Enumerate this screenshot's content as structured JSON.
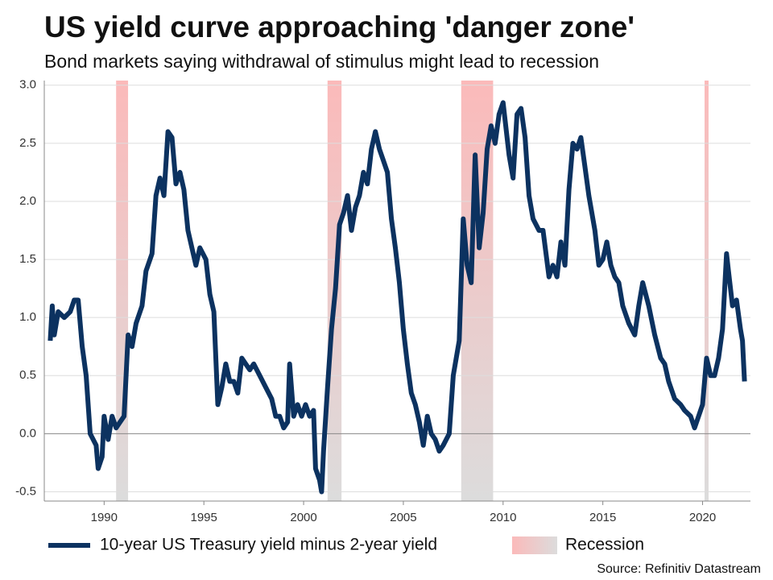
{
  "chart_data": {
    "type": "line",
    "title": "US yield curve approaching 'danger zone'",
    "subtitle": "Bond markets saying withdrawal of stimulus might lead to recession",
    "source": "Source: Refinitiv Datastream",
    "xlim": [
      1987,
      2022.4
    ],
    "xticks": [
      1990,
      1995,
      2000,
      2005,
      2010,
      2015,
      2020
    ],
    "ylim": [
      -0.58,
      3.04
    ],
    "yticks": [
      -0.5,
      {
        "value": 0,
        "label": "0.0"
      },
      0.5,
      {
        "value": 1,
        "label": "1.0"
      },
      1.5,
      {
        "value": 2,
        "label": "2.0"
      },
      2.5,
      {
        "value": 3,
        "label": "3.0"
      }
    ],
    "grid": true,
    "x": [
      1987.3,
      1987.4,
      1987.5,
      1987.7,
      1988.0,
      1988.3,
      1988.5,
      1988.7,
      1988.9,
      1989.1,
      1989.3,
      1989.6,
      1989.7,
      1989.9,
      1990.0,
      1990.2,
      1990.4,
      1990.6,
      1990.8,
      1991.0,
      1991.2,
      1991.4,
      1991.6,
      1991.9,
      1992.1,
      1992.4,
      1992.6,
      1992.8,
      1993.0,
      1993.2,
      1993.4,
      1993.6,
      1993.8,
      1994.0,
      1994.2,
      1994.4,
      1994.6,
      1994.8,
      1995.1,
      1995.3,
      1995.5,
      1995.7,
      1995.9,
      1996.1,
      1996.3,
      1996.5,
      1996.7,
      1996.9,
      1997.1,
      1997.3,
      1997.5,
      1997.8,
      1998.1,
      1998.4,
      1998.6,
      1998.8,
      1999.0,
      1999.2,
      1999.3,
      1999.5,
      1999.7,
      1999.9,
      2000.1,
      2000.3,
      2000.5,
      2000.6,
      2000.8,
      2000.9,
      2001.0,
      2001.2,
      2001.4,
      2001.6,
      2001.8,
      2002.0,
      2002.2,
      2002.4,
      2002.6,
      2002.8,
      2003.0,
      2003.2,
      2003.4,
      2003.6,
      2003.8,
      2004.0,
      2004.2,
      2004.4,
      2004.6,
      2004.8,
      2005.0,
      2005.2,
      2005.4,
      2005.6,
      2005.8,
      2006.0,
      2006.2,
      2006.4,
      2006.6,
      2006.8,
      2007.0,
      2007.3,
      2007.5,
      2007.8,
      2008.0,
      2008.2,
      2008.4,
      2008.6,
      2008.8,
      2009.0,
      2009.2,
      2009.4,
      2009.6,
      2009.8,
      2010.0,
      2010.3,
      2010.5,
      2010.7,
      2010.9,
      2011.1,
      2011.3,
      2011.5,
      2011.8,
      2012.0,
      2012.3,
      2012.5,
      2012.7,
      2012.9,
      2013.1,
      2013.3,
      2013.5,
      2013.7,
      2013.9,
      2014.1,
      2014.3,
      2014.6,
      2014.8,
      2015.0,
      2015.2,
      2015.4,
      2015.6,
      2015.8,
      2016.0,
      2016.3,
      2016.6,
      2016.8,
      2017.0,
      2017.3,
      2017.6,
      2017.9,
      2018.1,
      2018.3,
      2018.6,
      2018.9,
      2019.1,
      2019.4,
      2019.6,
      2019.8,
      2020.0,
      2020.2,
      2020.4,
      2020.6,
      2020.8,
      2021.0,
      2021.2,
      2021.3,
      2021.5,
      2021.7,
      2021.9,
      2022.0,
      2022.1
    ],
    "series": [
      {
        "name": "10-year US Treasury yield minus 2-year yield",
        "color": "#0c3260",
        "values": [
          0.8,
          1.1,
          0.85,
          1.05,
          1.0,
          1.05,
          1.15,
          1.15,
          0.75,
          0.5,
          0.0,
          -0.1,
          -0.3,
          -0.2,
          0.15,
          -0.05,
          0.15,
          0.05,
          0.1,
          0.15,
          0.85,
          0.75,
          0.95,
          1.1,
          1.4,
          1.55,
          2.05,
          2.2,
          2.05,
          2.6,
          2.55,
          2.15,
          2.25,
          2.1,
          1.75,
          1.6,
          1.45,
          1.6,
          1.5,
          1.2,
          1.05,
          0.25,
          0.4,
          0.6,
          0.45,
          0.45,
          0.35,
          0.65,
          0.6,
          0.55,
          0.6,
          0.5,
          0.4,
          0.3,
          0.15,
          0.15,
          0.05,
          0.1,
          0.6,
          0.15,
          0.25,
          0.15,
          0.25,
          0.15,
          0.2,
          -0.3,
          -0.4,
          -0.5,
          -0.15,
          0.4,
          0.9,
          1.25,
          1.8,
          1.9,
          2.05,
          1.75,
          1.95,
          2.05,
          2.25,
          2.15,
          2.45,
          2.6,
          2.45,
          2.35,
          2.25,
          1.85,
          1.6,
          1.3,
          0.9,
          0.6,
          0.35,
          0.25,
          0.1,
          -0.1,
          0.15,
          0.0,
          -0.05,
          -0.15,
          -0.1,
          0.0,
          0.5,
          0.8,
          1.85,
          1.45,
          1.3,
          2.4,
          1.6,
          1.9,
          2.45,
          2.65,
          2.5,
          2.75,
          2.85,
          2.4,
          2.2,
          2.75,
          2.8,
          2.55,
          2.05,
          1.85,
          1.75,
          1.75,
          1.35,
          1.45,
          1.35,
          1.65,
          1.45,
          2.1,
          2.5,
          2.45,
          2.55,
          2.3,
          2.05,
          1.75,
          1.45,
          1.5,
          1.65,
          1.45,
          1.35,
          1.3,
          1.1,
          0.95,
          0.85,
          1.1,
          1.3,
          1.1,
          0.85,
          0.65,
          0.6,
          0.45,
          0.3,
          0.25,
          0.2,
          0.15,
          0.05,
          0.15,
          0.25,
          0.65,
          0.5,
          0.5,
          0.65,
          0.9,
          1.55,
          1.4,
          1.1,
          1.15,
          0.9,
          0.8,
          0.45
        ]
      }
    ],
    "recession_name": "Recession",
    "recession_colors": [
      "#fbbaba",
      "#dcdcdc"
    ],
    "recessions": [
      {
        "start": 1990.6,
        "end": 1991.2
      },
      {
        "start": 2001.2,
        "end": 2001.9
      },
      {
        "start": 2007.9,
        "end": 2009.5
      },
      {
        "start": 2020.1,
        "end": 2020.3
      }
    ]
  }
}
